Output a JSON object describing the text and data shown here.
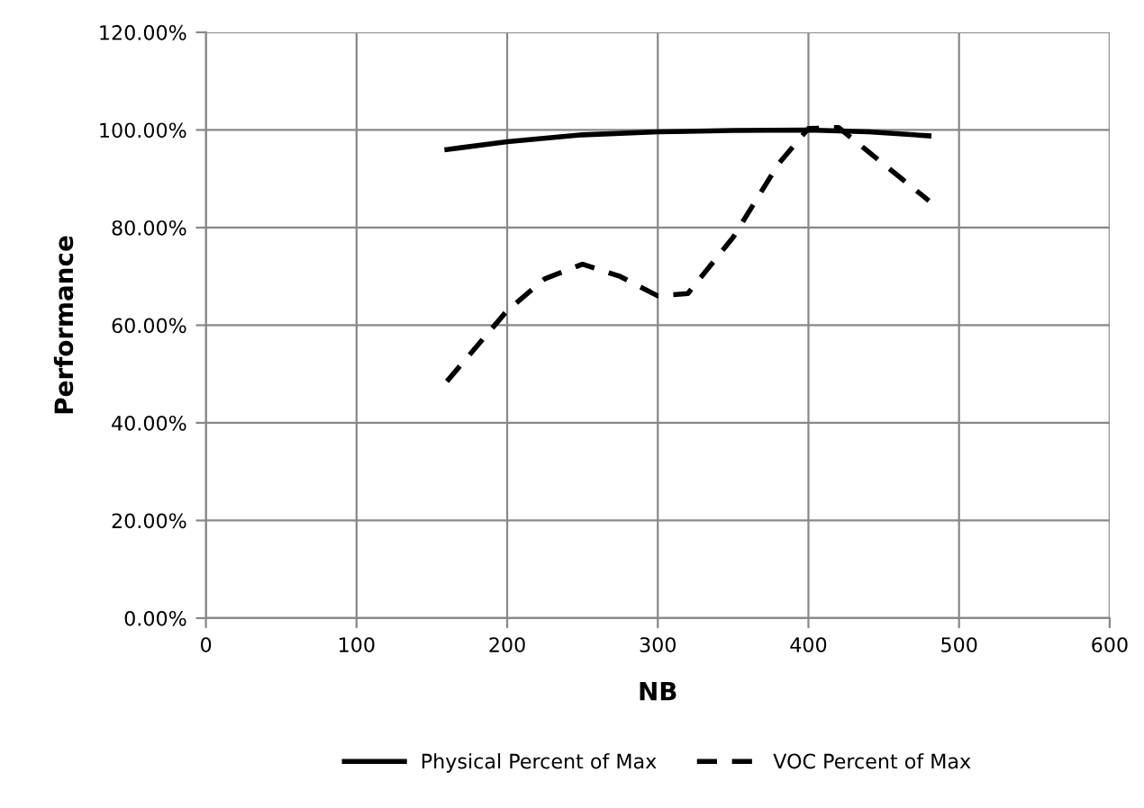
{
  "chart_data": {
    "type": "line",
    "xlabel": "NB",
    "ylabel": "Performance",
    "xlim": [
      0,
      600
    ],
    "xticks": [
      0,
      100,
      200,
      300,
      400,
      500,
      600
    ],
    "ylim": [
      0,
      120
    ],
    "yticks": [
      {
        "value": 0,
        "label": "0.00%"
      },
      {
        "value": 20,
        "label": "20.00%"
      },
      {
        "value": 40,
        "label": "40.00%"
      },
      {
        "value": 60,
        "label": "60.00%"
      },
      {
        "value": 80,
        "label": "80.00%"
      },
      {
        "value": 100,
        "label": "100.00%"
      },
      {
        "value": 120,
        "label": "120.00%"
      }
    ],
    "grid": true,
    "legend": "bottom",
    "marker": "none",
    "series": [
      {
        "name": "Physical Percent of Max",
        "color": "#000000",
        "line_style": "solid",
        "x": [
          160,
          200,
          250,
          300,
          350,
          400,
          440,
          480
        ],
        "values": [
          96,
          97.6,
          99,
          99.6,
          99.9,
          100,
          99.6,
          98.8
        ]
      },
      {
        "name": "VOC Percent of Max",
        "color": "#000000",
        "line_style": "dashed",
        "x": [
          160,
          200,
          225,
          250,
          275,
          300,
          320,
          350,
          380,
          400,
          420,
          440,
          460,
          480
        ],
        "values": [
          48.5,
          63,
          69.5,
          72.5,
          70,
          66,
          66.5,
          78,
          93,
          100.3,
          100.5,
          95.5,
          90.5,
          85.5
        ]
      }
    ]
  }
}
